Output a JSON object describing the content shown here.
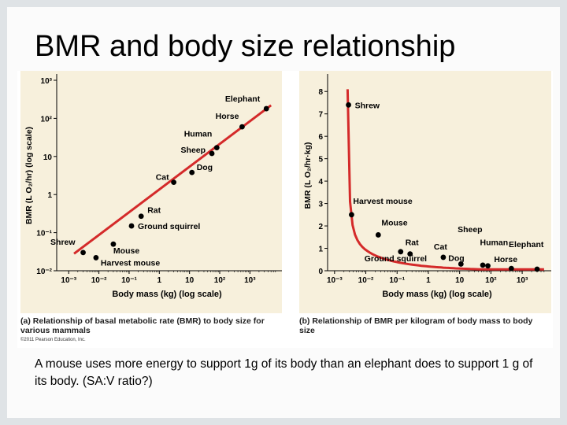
{
  "slide": {
    "title": "BMR and body size relationship",
    "body_text": "A mouse uses more energy to support 1g of its body than an elephant does to support 1 g of its body. (SA:V ratio?)",
    "copyright": "©2011 Pearson Education, Inc."
  },
  "colors": {
    "panel_bg": "#f7f0dc",
    "curve": "#d42a2a",
    "point": "#000000",
    "frame": "#dfe3e6"
  },
  "chart_data": [
    {
      "type": "scatter",
      "scale": "log-log",
      "caption_prefix": "(a)",
      "caption": "Relationship of basal metabolic rate (BMR) to body size for various mammals",
      "xlabel": "Body mass (kg) (log scale)",
      "ylabel": "BMR (L O₂/hr) (log scale)",
      "xlim": [
        0.0004,
        8000
      ],
      "ylim": [
        0.01,
        1000
      ],
      "x_ticks": [
        {
          "v": 0.001,
          "t": "10⁻³"
        },
        {
          "v": 0.01,
          "t": "10⁻²"
        },
        {
          "v": 0.1,
          "t": "10⁻¹"
        },
        {
          "v": 1,
          "t": "1"
        },
        {
          "v": 10,
          "t": "10"
        },
        {
          "v": 100,
          "t": "10²"
        },
        {
          "v": 1000,
          "t": "10³"
        }
      ],
      "y_ticks": [
        {
          "v": 0.01,
          "t": "10⁻²"
        },
        {
          "v": 0.1,
          "t": "10⁻¹"
        },
        {
          "v": 1,
          "t": "1"
        },
        {
          "v": 10,
          "t": "10"
        },
        {
          "v": 100,
          "t": "10²"
        },
        {
          "v": 1000,
          "t": "10³"
        }
      ],
      "fit_line": {
        "x": [
          0.0015,
          5000
        ],
        "y": [
          0.028,
          220
        ]
      },
      "points": [
        {
          "label": "Elephant",
          "x": 3500,
          "y": 180
        },
        {
          "label": "Horse",
          "x": 550,
          "y": 60
        },
        {
          "label": "Human",
          "x": 80,
          "y": 17
        },
        {
          "label": "Sheep",
          "x": 55,
          "y": 12
        },
        {
          "label": "Dog",
          "x": 12,
          "y": 3.8
        },
        {
          "label": "Cat",
          "x": 3,
          "y": 2.1
        },
        {
          "label": "Rat",
          "x": 0.25,
          "y": 0.27
        },
        {
          "label": "Ground squirrel",
          "x": 0.12,
          "y": 0.15
        },
        {
          "label": "Mouse",
          "x": 0.03,
          "y": 0.05
        },
        {
          "label": "Shrew",
          "x": 0.003,
          "y": 0.03
        },
        {
          "label": "Harvest mouse",
          "x": 0.008,
          "y": 0.022
        }
      ]
    },
    {
      "type": "scatter",
      "scale": "log-x",
      "caption_prefix": "(b)",
      "caption": "Relationship of BMR per kilogram of body mass to body size",
      "xlabel": "Body mass (kg) (log scale)",
      "ylabel": "BMR (L O₂/hr·kg)",
      "xlim": [
        0.0006,
        6000
      ],
      "ylim": [
        0,
        8.5
      ],
      "x_ticks": [
        {
          "v": 0.001,
          "t": "10⁻³"
        },
        {
          "v": 0.01,
          "t": "10⁻²"
        },
        {
          "v": 0.1,
          "t": "10⁻¹"
        },
        {
          "v": 1,
          "t": "1"
        },
        {
          "v": 10,
          "t": "10"
        },
        {
          "v": 100,
          "t": "10²"
        },
        {
          "v": 1000,
          "t": "10³"
        }
      ],
      "y_ticks": [
        {
          "v": 0,
          "t": "0"
        },
        {
          "v": 1,
          "t": "1"
        },
        {
          "v": 2,
          "t": "2"
        },
        {
          "v": 3,
          "t": "3"
        },
        {
          "v": 4,
          "t": "4"
        },
        {
          "v": 5,
          "t": "5"
        },
        {
          "v": 6,
          "t": "6"
        },
        {
          "v": 7,
          "t": "7"
        },
        {
          "v": 8,
          "t": "8"
        }
      ],
      "points": [
        {
          "label": "Shrew",
          "x": 0.0028,
          "y": 7.4
        },
        {
          "label": "Harvest mouse",
          "x": 0.0035,
          "y": 2.5
        },
        {
          "label": "Mouse",
          "x": 0.025,
          "y": 1.6
        },
        {
          "label": "Ground squirrel",
          "x": 0.13,
          "y": 0.85
        },
        {
          "label": "Rat",
          "x": 0.26,
          "y": 0.75
        },
        {
          "label": "Cat",
          "x": 3,
          "y": 0.6
        },
        {
          "label": "Dog",
          "x": 11,
          "y": 0.3
        },
        {
          "label": "Sheep",
          "x": 55,
          "y": 0.25
        },
        {
          "label": "Human",
          "x": 80,
          "y": 0.22
        },
        {
          "label": "Horse",
          "x": 450,
          "y": 0.1
        },
        {
          "label": "Elephant",
          "x": 3000,
          "y": 0.07
        }
      ]
    }
  ]
}
